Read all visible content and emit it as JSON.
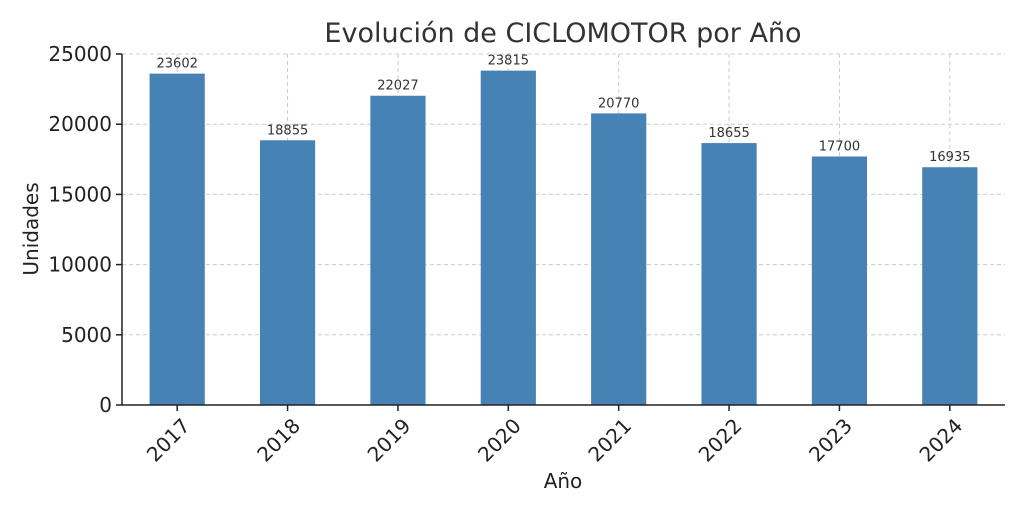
{
  "chart_data": {
    "type": "bar",
    "title": "Evolución de CICLOMOTOR por Año",
    "xlabel": "Año",
    "ylabel": "Unidades",
    "categories": [
      "2017",
      "2018",
      "2019",
      "2020",
      "2021",
      "2022",
      "2023",
      "2024"
    ],
    "values": [
      23602,
      18855,
      22027,
      23815,
      20770,
      18655,
      17700,
      16935
    ],
    "ylim": [
      0,
      25000
    ],
    "yticks": [
      0,
      5000,
      10000,
      15000,
      20000,
      25000
    ],
    "grid": true,
    "bar_color": "#4682b4",
    "data_labels": true
  }
}
